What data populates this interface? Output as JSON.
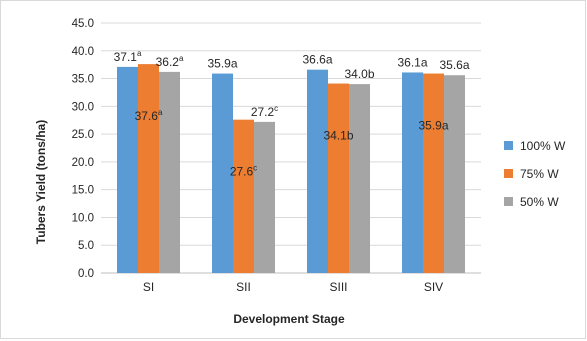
{
  "chart_data": {
    "type": "bar",
    "categories": [
      "SI",
      "SII",
      "SIII",
      "SIV"
    ],
    "series": [
      {
        "name": "100% W",
        "color": "#5b9bd5",
        "values": [
          37.1,
          35.9,
          36.6,
          36.1
        ]
      },
      {
        "name": "75% W",
        "color": "#ed7d31",
        "values": [
          37.6,
          27.6,
          34.1,
          35.9
        ]
      },
      {
        "name": "50% W",
        "color": "#a5a5a5",
        "values": [
          36.2,
          27.2,
          34.0,
          35.6
        ]
      }
    ],
    "data_labels": [
      {
        "text": "37.1",
        "sup": "a",
        "category": "SI",
        "series": "100% W",
        "placement": "above"
      },
      {
        "text": "36.2",
        "sup": "a",
        "category": "SI",
        "series": "50% W",
        "placement": "above"
      },
      {
        "text": "37.6",
        "sup": "a",
        "category": "SI",
        "series": "75% W",
        "placement": "inside"
      },
      {
        "text": "35.9a",
        "sup": "",
        "category": "SII",
        "series": "100% W",
        "placement": "above"
      },
      {
        "text": "27.2",
        "sup": "c",
        "category": "SII",
        "series": "50% W",
        "placement": "above"
      },
      {
        "text": "27.6",
        "sup": "c",
        "category": "SII",
        "series": "75% W",
        "placement": "inside"
      },
      {
        "text": "36.6a",
        "sup": "",
        "category": "SIII",
        "series": "100% W",
        "placement": "above"
      },
      {
        "text": "34.0b",
        "sup": "",
        "category": "SIII",
        "series": "50% W",
        "placement": "above"
      },
      {
        "text": "34.1b",
        "sup": "",
        "category": "SIII",
        "series": "75% W",
        "placement": "inside"
      },
      {
        "text": "36.1a",
        "sup": "",
        "category": "SIV",
        "series": "100% W",
        "placement": "above"
      },
      {
        "text": "35.6a",
        "sup": "",
        "category": "SIV",
        "series": "50% W",
        "placement": "above"
      },
      {
        "text": "35.9a",
        "sup": "",
        "category": "SIV",
        "series": "75% W",
        "placement": "inside"
      }
    ],
    "title": "",
    "xlabel": "Development Stage",
    "ylabel": "Tubers Yield  (tons/ha)",
    "ylim": [
      0,
      45
    ],
    "ytick_step": 5,
    "ytick_labels": [
      "0.0",
      "5.0",
      "10.0",
      "15.0",
      "20.0",
      "25.0",
      "30.0",
      "35.0",
      "40.0",
      "45.0"
    ],
    "grid": true,
    "legend_position": "right"
  }
}
